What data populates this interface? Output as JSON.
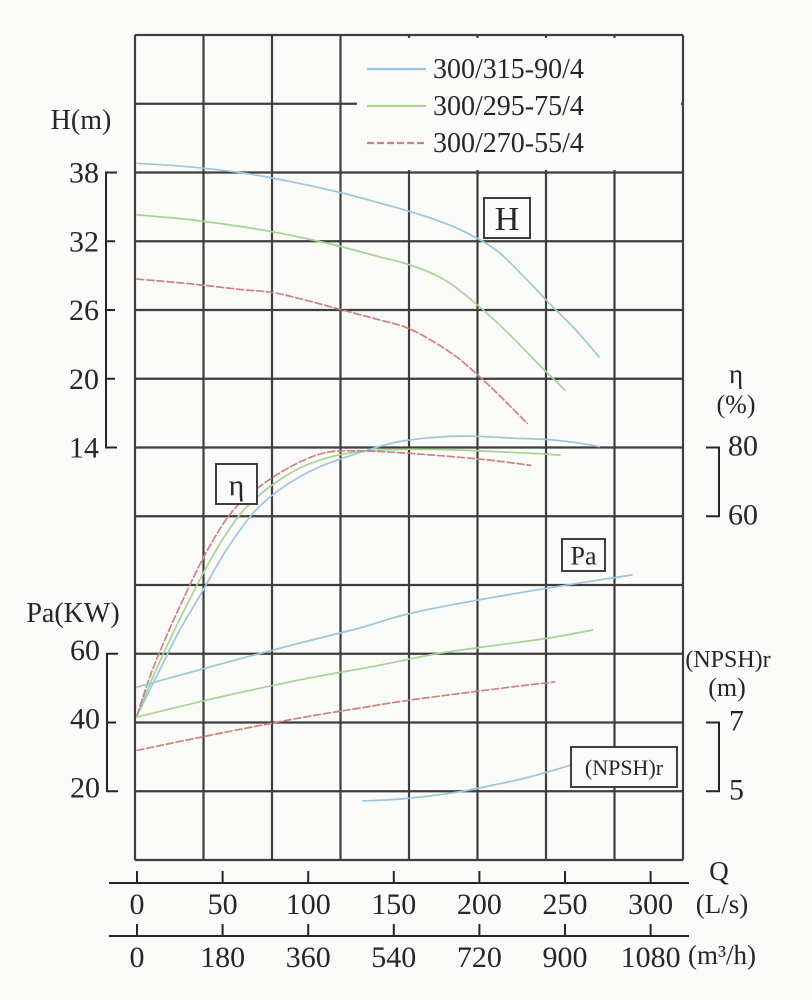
{
  "chart_data": {
    "type": "line",
    "title": "",
    "description": "Pump performance curves: head H(m), efficiency eta(%), shaft power Pa(KW) and required NPSH (m) versus flow Q for three pump models",
    "colors": {
      "background": "#fbfbf9",
      "grid": "#3e3e3e",
      "text": "#262626"
    },
    "legend": {
      "position": "top-right",
      "entries": [
        {
          "label": "300/315-90/4",
          "color": "#9ac7d9",
          "style": "solid"
        },
        {
          "label": "300/295-75/4",
          "color": "#a9d393",
          "style": "solid"
        },
        {
          "label": "300/270-55/4",
          "color": "#cd8282",
          "style": "dashed"
        }
      ]
    },
    "x_axis": {
      "name": "Q",
      "primary_units": "(L/s)",
      "primary_ticks": [
        0,
        50,
        100,
        150,
        200,
        250,
        300
      ],
      "secondary_units": "(m³/h)",
      "secondary_ticks": [
        0,
        180,
        360,
        540,
        720,
        900,
        1080
      ]
    },
    "y_axes": [
      {
        "name": "H(m)",
        "side": "left",
        "ticks": [
          38,
          32,
          26,
          20,
          14
        ]
      },
      {
        "name": "Pa(KW)",
        "side": "left",
        "ticks": [
          60,
          40,
          20
        ]
      },
      {
        "name": "η",
        "units": "(%)",
        "side": "right",
        "ticks": [
          80,
          60
        ]
      },
      {
        "name": "(NPSH)r",
        "units": "(m)",
        "side": "right",
        "ticks": [
          7,
          5
        ]
      }
    ],
    "annotations": [
      "H",
      "η",
      "Pa",
      "(NPSH)r"
    ],
    "series": [
      {
        "model": "300/315-90/4",
        "quantity": "H",
        "units": "m",
        "points": [
          [
            0,
            38.8
          ],
          [
            30,
            38.5
          ],
          [
            60,
            38.0
          ],
          [
            90,
            37.2
          ],
          [
            120,
            36.2
          ],
          [
            150,
            35.0
          ],
          [
            170,
            34.1
          ],
          [
            189,
            33.0
          ],
          [
            210,
            31.2
          ],
          [
            228,
            28.6
          ],
          [
            242,
            26.4
          ],
          [
            256,
            24.3
          ],
          [
            270,
            21.9
          ]
        ]
      },
      {
        "model": "300/295-75/4",
        "quantity": "H",
        "units": "m",
        "points": [
          [
            0,
            34.3
          ],
          [
            30,
            33.9
          ],
          [
            60,
            33.3
          ],
          [
            80,
            32.8
          ],
          [
            100,
            32.2
          ],
          [
            120,
            31.5
          ],
          [
            140,
            30.7
          ],
          [
            160,
            29.9
          ],
          [
            180,
            28.6
          ],
          [
            200,
            26.3
          ],
          [
            218,
            23.8
          ],
          [
            235,
            21.2
          ],
          [
            250,
            19.0
          ]
        ]
      },
      {
        "model": "300/270-55/4",
        "quantity": "H",
        "units": "m",
        "points": [
          [
            0,
            28.7
          ],
          [
            30,
            28.3
          ],
          [
            60,
            27.8
          ],
          [
            80,
            27.5
          ],
          [
            100,
            26.8
          ],
          [
            120,
            26.0
          ],
          [
            140,
            25.2
          ],
          [
            160,
            24.3
          ],
          [
            183,
            22.3
          ],
          [
            200,
            20.2
          ],
          [
            214,
            18.2
          ],
          [
            228,
            16.1
          ]
        ]
      },
      {
        "model": "300/315-90/4",
        "quantity": "eta",
        "units": "%",
        "points": [
          [
            0,
            2
          ],
          [
            12,
            14
          ],
          [
            24,
            26
          ],
          [
            38,
            38
          ],
          [
            52,
            50
          ],
          [
            68,
            61
          ],
          [
            84,
            68
          ],
          [
            105,
            74
          ],
          [
            130,
            78.5
          ],
          [
            152,
            81.6
          ],
          [
            175,
            83.0
          ],
          [
            196,
            83.3
          ],
          [
            220,
            82.7
          ],
          [
            240,
            82.3
          ],
          [
            255,
            81.5
          ],
          [
            270,
            80.3
          ]
        ]
      },
      {
        "model": "300/295-75/4",
        "quantity": "eta",
        "units": "%",
        "points": [
          [
            0,
            2
          ],
          [
            10,
            14
          ],
          [
            21,
            26
          ],
          [
            33,
            38
          ],
          [
            46,
            50
          ],
          [
            61,
            61
          ],
          [
            76,
            68
          ],
          [
            95,
            74
          ],
          [
            115,
            77.5
          ],
          [
            135,
            79.0
          ],
          [
            160,
            79.5
          ],
          [
            185,
            79.3
          ],
          [
            210,
            78.8
          ],
          [
            230,
            78.3
          ],
          [
            247,
            77.8
          ]
        ]
      },
      {
        "model": "300/270-55/4",
        "quantity": "eta",
        "units": "%",
        "points": [
          [
            0,
            2
          ],
          [
            8,
            14
          ],
          [
            18,
            26
          ],
          [
            29,
            38
          ],
          [
            41,
            50
          ],
          [
            55,
            61
          ],
          [
            70,
            68
          ],
          [
            90,
            74.5
          ],
          [
            110,
            78.5
          ],
          [
            130,
            79.0
          ],
          [
            150,
            78.6
          ],
          [
            170,
            77.9
          ],
          [
            190,
            77.1
          ],
          [
            210,
            76.1
          ],
          [
            230,
            74.8
          ]
        ]
      },
      {
        "model": "300/315-90/4",
        "quantity": "Pa",
        "units": "KW",
        "points": [
          [
            0,
            50.3
          ],
          [
            45,
            56.5
          ],
          [
            95,
            63.1
          ],
          [
            130,
            67.5
          ],
          [
            160,
            71.8
          ],
          [
            199,
            75.6
          ],
          [
            245,
            79.5
          ],
          [
            289,
            82.9
          ]
        ]
      },
      {
        "model": "300/295-75/4",
        "quantity": "Pa",
        "units": "KW",
        "points": [
          [
            0,
            41.6
          ],
          [
            45,
            47.0
          ],
          [
            95,
            52.4
          ],
          [
            140,
            56.5
          ],
          [
            175,
            60.0
          ],
          [
            210,
            62.5
          ],
          [
            241,
            64.6
          ],
          [
            266,
            66.9
          ]
        ]
      },
      {
        "model": "300/270-55/4",
        "quantity": "Pa",
        "units": "KW",
        "points": [
          [
            0,
            31.9
          ],
          [
            45,
            36.5
          ],
          [
            95,
            41.3
          ],
          [
            130,
            44.2
          ],
          [
            159,
            46.5
          ],
          [
            185,
            48.2
          ],
          [
            210,
            49.8
          ],
          [
            228,
            50.9
          ],
          [
            244,
            51.8
          ]
        ]
      },
      {
        "model": "300/315-90/4",
        "quantity": "NPSH",
        "units": "m",
        "points": [
          [
            132,
            4.72
          ],
          [
            150,
            4.76
          ],
          [
            170,
            4.86
          ],
          [
            190,
            5.0
          ],
          [
            210,
            5.2
          ],
          [
            228,
            5.4
          ],
          [
            248,
            5.68
          ],
          [
            264,
            5.92
          ]
        ]
      }
    ]
  }
}
